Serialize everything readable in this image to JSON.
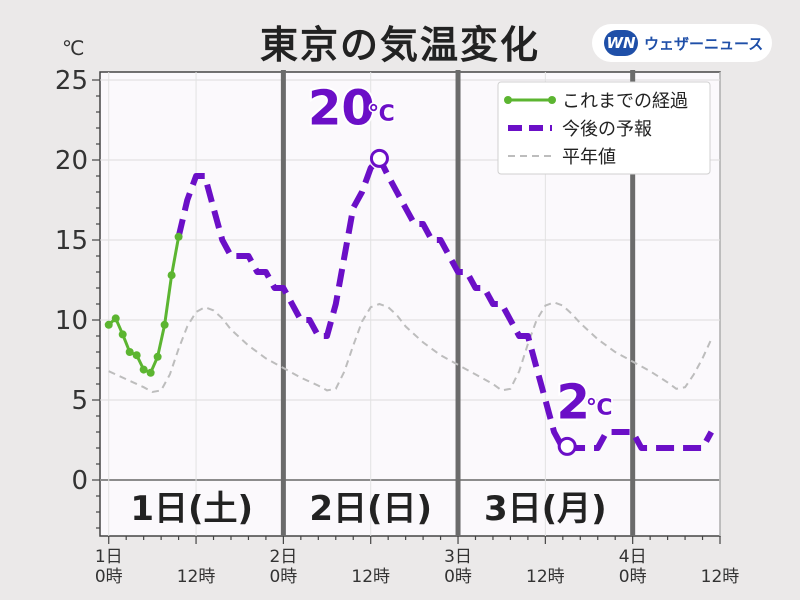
{
  "header": {
    "title": "東京の気温変化",
    "brand_logo": "WN",
    "brand_name": "ウェザーニュース"
  },
  "chart_data": {
    "type": "line",
    "title": "東京の気温変化",
    "ylabel": "℃",
    "ylim": [
      -3.5,
      25.5
    ],
    "yticks": [
      0,
      5,
      10,
      15,
      20,
      25
    ],
    "xlim_hours": [
      -1,
      70
    ],
    "grid": true,
    "legend_position": "top-right",
    "day_dividers_hours": [
      20,
      40,
      60
    ],
    "x_tick_hours": [
      0,
      10,
      20,
      30,
      40,
      50,
      60,
      70
    ],
    "x_ticks": [
      {
        "line1": "1日",
        "line2": "0時"
      },
      {
        "line1": "",
        "line2": "12時"
      },
      {
        "line1": "2日",
        "line2": "0時"
      },
      {
        "line1": "",
        "line2": "12時"
      },
      {
        "line1": "3日",
        "line2": "0時"
      },
      {
        "line1": "",
        "line2": "12時"
      },
      {
        "line1": "4日",
        "line2": "0時"
      },
      {
        "line1": "",
        "line2": "12時"
      }
    ],
    "day_labels": [
      {
        "text": "1日(土)",
        "center_hour": 9.5
      },
      {
        "text": "2日(日)",
        "center_hour": 30
      },
      {
        "text": "3日(月)",
        "center_hour": 50
      }
    ],
    "series": [
      {
        "name": "これまでの経過",
        "style": "solid-markers",
        "color": "#5cb531",
        "points": [
          [
            0,
            9.7
          ],
          [
            0.8,
            10.1
          ],
          [
            1.6,
            9.1
          ],
          [
            2.4,
            8.0
          ],
          [
            3.2,
            7.8
          ],
          [
            4.0,
            6.9
          ],
          [
            4.8,
            6.7
          ],
          [
            5.6,
            7.7
          ],
          [
            6.4,
            9.7
          ],
          [
            7.2,
            12.8
          ],
          [
            8.0,
            15.2
          ]
        ]
      },
      {
        "name": "今後の予報",
        "style": "thick-dashed",
        "color": "#6b0fc7",
        "points": [
          [
            8,
            15.2
          ],
          [
            9,
            17.5
          ],
          [
            10,
            19
          ],
          [
            11,
            19
          ],
          [
            12,
            17
          ],
          [
            13,
            15
          ],
          [
            14,
            14
          ],
          [
            15,
            14
          ],
          [
            16,
            14
          ],
          [
            17,
            13
          ],
          [
            18,
            13
          ],
          [
            19,
            12
          ],
          [
            20,
            12
          ],
          [
            21,
            11
          ],
          [
            22,
            10
          ],
          [
            23,
            10
          ],
          [
            24,
            9
          ],
          [
            25,
            9
          ],
          [
            26,
            11
          ],
          [
            27,
            14
          ],
          [
            28,
            17
          ],
          [
            29,
            18
          ],
          [
            30,
            19.5
          ],
          [
            31,
            20.1
          ],
          [
            32,
            19
          ],
          [
            33,
            18
          ],
          [
            34,
            17
          ],
          [
            35,
            16
          ],
          [
            36,
            16
          ],
          [
            37,
            15
          ],
          [
            38,
            15
          ],
          [
            39,
            14
          ],
          [
            40,
            13
          ],
          [
            41,
            13
          ],
          [
            42,
            12
          ],
          [
            43,
            12
          ],
          [
            44,
            11
          ],
          [
            45,
            11
          ],
          [
            46,
            10
          ],
          [
            47,
            9
          ],
          [
            48,
            9
          ],
          [
            49,
            7
          ],
          [
            50,
            5
          ],
          [
            51,
            3
          ],
          [
            52,
            2
          ],
          [
            53,
            2
          ],
          [
            54,
            2
          ],
          [
            55,
            2
          ],
          [
            56,
            2
          ],
          [
            57,
            3
          ],
          [
            58,
            3
          ],
          [
            59,
            3
          ],
          [
            60,
            3
          ],
          [
            61,
            2
          ],
          [
            62,
            2
          ],
          [
            63,
            2
          ],
          [
            64,
            2
          ],
          [
            65,
            2
          ],
          [
            66,
            2
          ],
          [
            67,
            2
          ],
          [
            68,
            2
          ],
          [
            69,
            3
          ]
        ]
      },
      {
        "name": "平年値",
        "style": "thin-dashed",
        "color": "#bdbdbd",
        "points": [
          [
            0,
            6.8
          ],
          [
            2,
            6.3
          ],
          [
            4,
            5.8
          ],
          [
            5,
            5.5
          ],
          [
            6,
            5.6
          ],
          [
            7,
            6.6
          ],
          [
            8,
            8.2
          ],
          [
            9,
            9.6
          ],
          [
            10,
            10.5
          ],
          [
            11,
            10.8
          ],
          [
            12,
            10.6
          ],
          [
            13,
            10.1
          ],
          [
            14,
            9.4
          ],
          [
            16,
            8.4
          ],
          [
            18,
            7.6
          ],
          [
            20,
            7.0
          ],
          [
            22,
            6.4
          ],
          [
            24,
            5.9
          ],
          [
            25,
            5.6
          ],
          [
            26,
            5.7
          ],
          [
            27,
            6.8
          ],
          [
            28,
            8.4
          ],
          [
            29,
            9.9
          ],
          [
            30,
            10.8
          ],
          [
            31,
            11.0
          ],
          [
            32,
            10.8
          ],
          [
            33,
            10.3
          ],
          [
            34,
            9.6
          ],
          [
            36,
            8.6
          ],
          [
            38,
            7.8
          ],
          [
            40,
            7.2
          ],
          [
            42,
            6.6
          ],
          [
            44,
            6.0
          ],
          [
            45,
            5.6
          ],
          [
            46,
            5.7
          ],
          [
            47,
            6.8
          ],
          [
            48,
            8.5
          ],
          [
            49,
            10.0
          ],
          [
            50,
            10.9
          ],
          [
            51,
            11.1
          ],
          [
            52,
            10.9
          ],
          [
            53,
            10.4
          ],
          [
            54,
            9.8
          ],
          [
            56,
            8.8
          ],
          [
            58,
            8.0
          ],
          [
            60,
            7.4
          ],
          [
            62,
            6.8
          ],
          [
            64,
            6.1
          ],
          [
            65,
            5.7
          ],
          [
            66,
            5.8
          ],
          [
            67,
            6.6
          ],
          [
            68,
            7.6
          ],
          [
            69,
            8.8
          ]
        ]
      }
    ],
    "annotations": [
      {
        "text": "20",
        "unit": "℃",
        "hour": 31,
        "value": 20.1,
        "kind": "max"
      },
      {
        "text": "2",
        "unit": "℃",
        "hour": 52.5,
        "value": 2.1,
        "kind": "min"
      }
    ]
  }
}
